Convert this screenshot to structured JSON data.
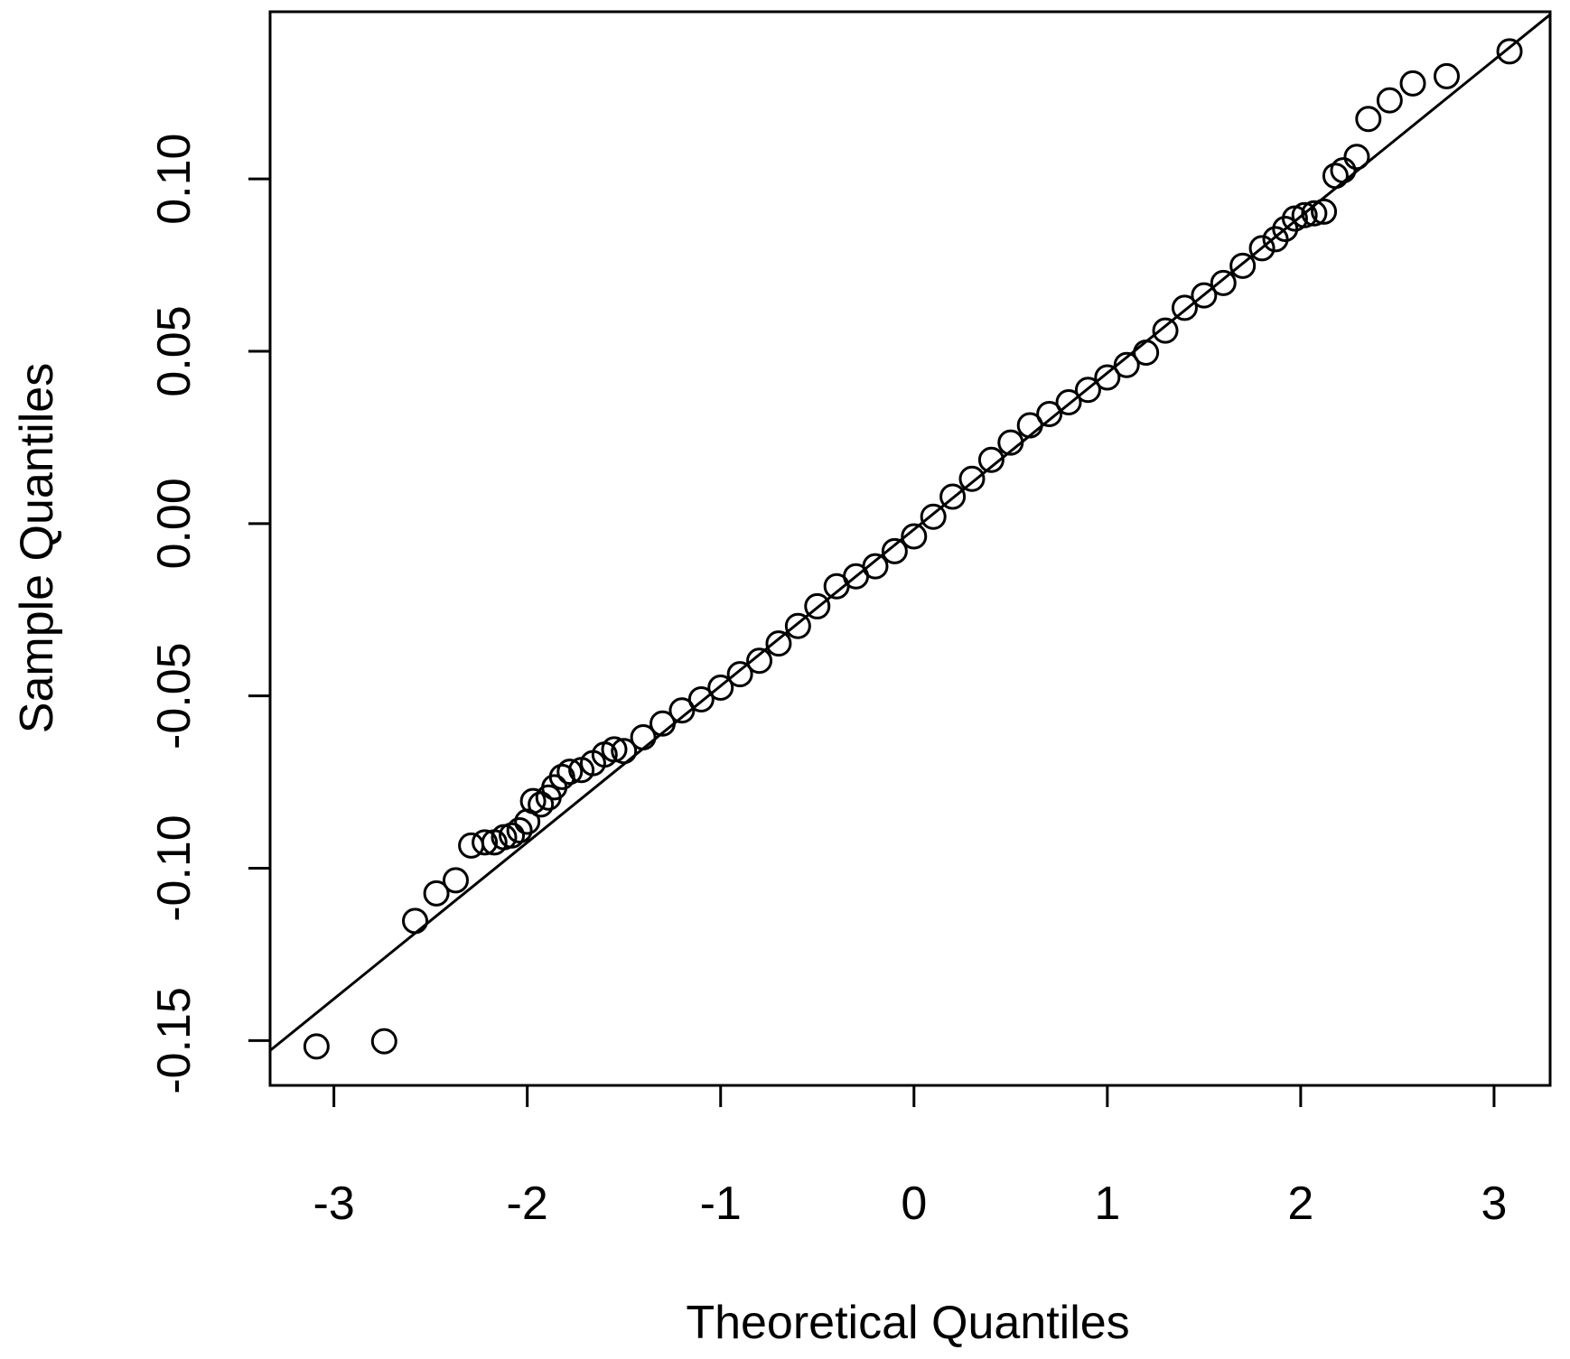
{
  "chart_data": {
    "type": "scatter",
    "x_label": "Theoretical Quantiles",
    "y_label": "Sample Quantiles",
    "xlim": [
      -3.33,
      3.29
    ],
    "ylim": [
      -0.163,
      0.1485
    ],
    "xticks": [
      -3,
      -2,
      -1,
      0,
      1,
      2,
      3
    ],
    "yticks": [
      -0.15,
      {
        "value": -0.1,
        "label": "-0.10"
      },
      -0.05,
      {
        "value": 0,
        "label": "0.00"
      },
      0.05,
      {
        "value": 0.1,
        "label": "0.10"
      }
    ],
    "color": "#000000",
    "qqline": {
      "intercept": -0.0017,
      "slope": 0.0454
    },
    "x": [
      -3.09,
      -2.74,
      -2.58,
      -2.47,
      -2.37,
      -2.29,
      -2.22,
      -2.17,
      -2.12,
      -2.08,
      -2.04,
      -2.0,
      -1.97,
      -1.93,
      -1.89,
      -1.86,
      -1.82,
      -1.78,
      -1.72,
      -1.66,
      -1.6,
      -1.55,
      -1.5,
      -1.4,
      -1.3,
      -1.2,
      -1.1,
      -1.0,
      -0.9,
      -0.8,
      -0.7,
      -0.6,
      -0.5,
      -0.4,
      -0.3,
      -0.2,
      -0.1,
      0.0,
      0.1,
      0.2,
      0.3,
      0.4,
      0.5,
      0.6,
      0.7,
      0.8,
      0.9,
      1.0,
      1.1,
      1.2,
      1.3,
      1.4,
      1.5,
      1.6,
      1.7,
      1.8,
      1.87,
      1.92,
      1.97,
      2.02,
      2.07,
      2.12,
      2.18,
      2.22,
      2.29,
      2.35,
      2.46,
      2.58,
      2.755,
      3.08
    ],
    "values": [
      -0.1517,
      -0.1502,
      -0.1153,
      -0.1073,
      -0.1035,
      -0.0934,
      -0.0925,
      -0.0925,
      -0.091,
      -0.0905,
      -0.089,
      -0.0865,
      -0.0805,
      -0.0815,
      -0.0795,
      -0.0765,
      -0.0735,
      -0.072,
      -0.0715,
      -0.0695,
      -0.067,
      -0.0655,
      -0.066,
      -0.062,
      -0.058,
      -0.0542,
      -0.051,
      -0.0476,
      -0.0437,
      -0.0398,
      -0.0348,
      -0.0297,
      -0.024,
      -0.0182,
      -0.0153,
      -0.0124,
      -0.008,
      -0.0037,
      0.002,
      0.0078,
      0.013,
      0.0185,
      0.0235,
      0.0285,
      0.0318,
      0.0352,
      0.0388,
      0.0424,
      0.046,
      0.0496,
      0.056,
      0.0626,
      0.0662,
      0.0698,
      0.0748,
      0.0799,
      0.0825,
      0.0855,
      0.0885,
      0.0895,
      0.09,
      0.0905,
      0.1009,
      0.1025,
      0.1064,
      0.1174,
      0.1228,
      0.1277,
      0.1298,
      0.137
    ]
  }
}
